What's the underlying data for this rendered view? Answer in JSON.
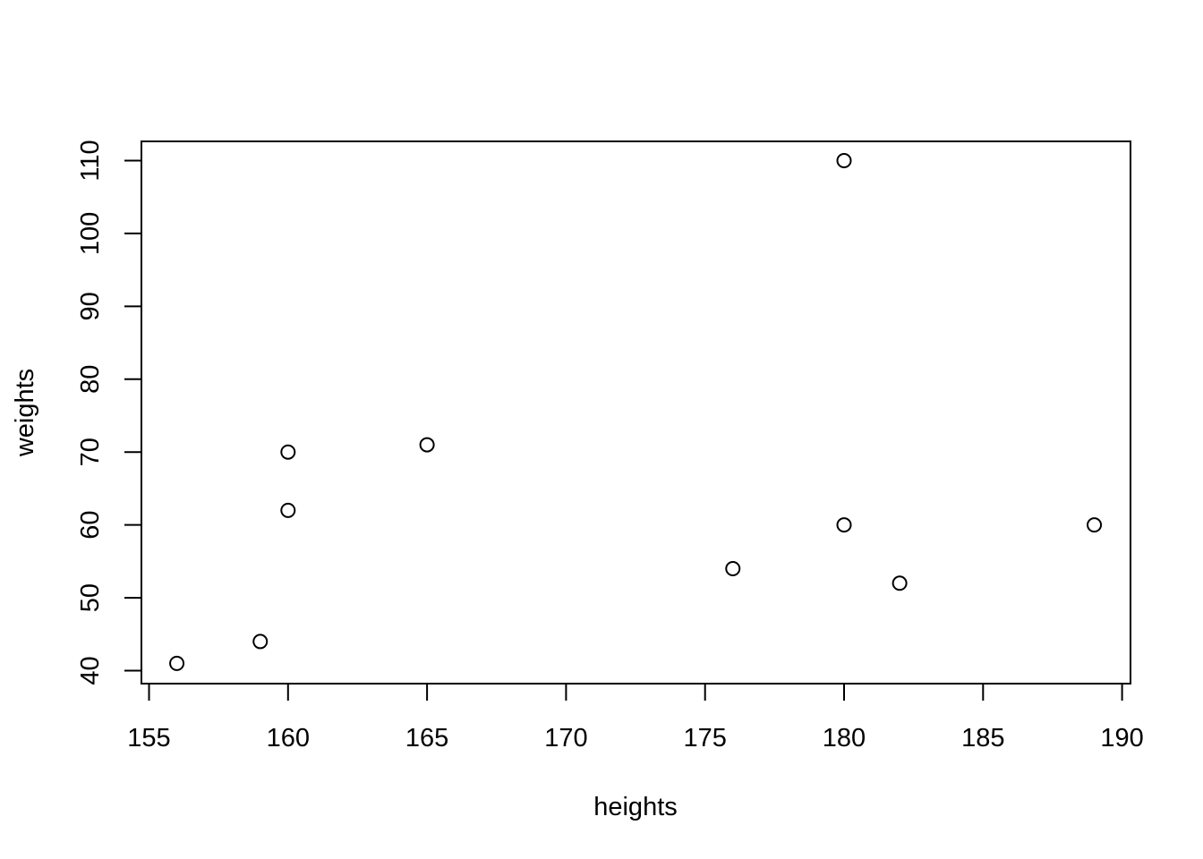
{
  "chart_data": {
    "type": "scatter",
    "title": "",
    "xlabel": "heights",
    "ylabel": "weights",
    "xlim": [
      155,
      190
    ],
    "ylim": [
      40,
      110
    ],
    "x_ticks": [
      "155",
      "160",
      "165",
      "170",
      "175",
      "180",
      "185",
      "190"
    ],
    "y_ticks": [
      "40",
      "50",
      "60",
      "70",
      "80",
      "90",
      "100",
      "110"
    ],
    "grid": false,
    "legend": "none",
    "marker": "open-circle",
    "colors": {
      "point": "#000000",
      "background": "#ffffff"
    },
    "points": [
      {
        "x": 156,
        "y": 41
      },
      {
        "x": 159,
        "y": 44
      },
      {
        "x": 160,
        "y": 70
      },
      {
        "x": 160,
        "y": 62
      },
      {
        "x": 165,
        "y": 71
      },
      {
        "x": 176,
        "y": 54
      },
      {
        "x": 180,
        "y": 110
      },
      {
        "x": 180,
        "y": 60
      },
      {
        "x": 182,
        "y": 52
      },
      {
        "x": 189,
        "y": 60
      }
    ]
  }
}
